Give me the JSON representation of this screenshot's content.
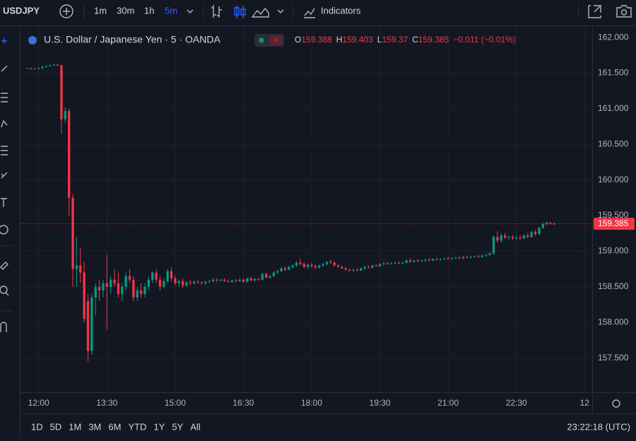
{
  "toolbar": {
    "symbol": "USDJPY",
    "intervals": [
      "1m",
      "30m",
      "1h",
      "5m"
    ],
    "indicators": "Indicators"
  },
  "header": {
    "title": "U.S. Dollar / Japanese Yen · 5 · OANDA",
    "ohlc_labels": [
      "O",
      "H",
      "L",
      "C"
    ],
    "change": "−0.011 (−0.01%)"
  },
  "footer": {
    "ranges": [
      "1D",
      "5D",
      "1M",
      "3M",
      "6M",
      "YTD",
      "1Y",
      "5Y",
      "All"
    ],
    "clock": "23:22:18 (UTC)"
  },
  "chart_data": {
    "type": "candlestick",
    "up_color": "#089981",
    "down_color": "#f23645",
    "ylim": [
      157.02,
      162.16
    ],
    "yticks": [
      {
        "value": 157.5,
        "label": "157.500"
      },
      {
        "value": 158,
        "label": "158.000"
      },
      {
        "value": 158.5,
        "label": "158.500"
      },
      {
        "value": 159,
        "label": "159.000"
      },
      {
        "value": 159.5,
        "label": "159.500"
      },
      {
        "value": 160,
        "label": "160.000"
      },
      {
        "value": 160.5,
        "label": "160.500"
      },
      {
        "value": 161,
        "label": "161.000"
      },
      {
        "value": 161.5,
        "label": "161.500"
      },
      {
        "value": 162,
        "label": "162.000"
      }
    ],
    "xlim": [
      "11:36",
      "00:10"
    ],
    "xticks": [
      "12:00",
      "13:30",
      "15:00",
      "16:30",
      "18:00",
      "19:30",
      "21:00",
      "22:30",
      {
        "value": "00:00",
        "label": "12"
      }
    ],
    "grid": true,
    "x": [
      "11:45",
      "11:50",
      "11:55",
      "12:00",
      "12:05",
      "12:10",
      "12:15",
      "12:20",
      "12:25",
      "12:30",
      "12:35",
      "12:40",
      "12:45",
      "12:50",
      "12:55",
      "13:00",
      "13:05",
      "13:10",
      "13:15",
      "13:20",
      "13:25",
      "13:30",
      "13:35",
      "13:40",
      "13:45",
      "13:50",
      "13:55",
      "14:00",
      "14:05",
      "14:10",
      "14:15",
      "14:20",
      "14:25",
      "14:30",
      "14:35",
      "14:40",
      "14:45",
      "14:50",
      "14:55",
      "15:00",
      "15:05",
      "15:10",
      "15:15",
      "15:20",
      "15:25",
      "15:30",
      "15:35",
      "15:40",
      "15:45",
      "15:50",
      "15:55",
      "16:00",
      "16:05",
      "16:10",
      "16:15",
      "16:20",
      "16:25",
      "16:30",
      "16:35",
      "16:40",
      "16:45",
      "16:50",
      "16:55",
      "17:00",
      "17:05",
      "17:10",
      "17:15",
      "17:20",
      "17:25",
      "17:30",
      "17:35",
      "17:40",
      "17:45",
      "17:50",
      "17:55",
      "18:00",
      "18:05",
      "18:10",
      "18:15",
      "18:20",
      "18:25",
      "18:30",
      "18:35",
      "18:40",
      "18:45",
      "18:50",
      "18:55",
      "19:00",
      "19:05",
      "19:10",
      "19:15",
      "19:20",
      "19:25",
      "19:30",
      "19:35",
      "19:40",
      "19:45",
      "19:50",
      "19:55",
      "20:00",
      "20:05",
      "20:10",
      "20:15",
      "20:20",
      "20:25",
      "20:30",
      "20:35",
      "20:40",
      "20:45",
      "20:50",
      "20:55",
      "21:00",
      "21:05",
      "21:10",
      "21:15",
      "21:20",
      "21:25",
      "21:30",
      "21:35",
      "21:40",
      "21:45",
      "21:50",
      "21:55",
      "22:00",
      "22:05",
      "22:10",
      "22:15",
      "22:20",
      "22:25",
      "22:30",
      "22:35",
      "22:40",
      "22:45",
      "22:50",
      "22:55",
      "23:00",
      "23:05",
      "23:10",
      "23:15",
      "23:20"
    ],
    "candles": [
      [
        161.57,
        161.58,
        161.56,
        161.57
      ],
      [
        161.57,
        161.58,
        161.55,
        161.56
      ],
      [
        161.56,
        161.57,
        161.55,
        161.56
      ],
      [
        161.56,
        161.58,
        161.55,
        161.57
      ],
      [
        161.57,
        161.6,
        161.56,
        161.59
      ],
      [
        161.59,
        161.61,
        161.58,
        161.6
      ],
      [
        161.6,
        161.62,
        161.59,
        161.61
      ],
      [
        161.61,
        161.63,
        161.6,
        161.62
      ],
      [
        161.62,
        161.63,
        161.6,
        161.61
      ],
      [
        161.61,
        161.62,
        160.65,
        160.85
      ],
      [
        160.85,
        161.02,
        160.8,
        160.97
      ],
      [
        160.97,
        161.0,
        159.5,
        159.75
      ],
      [
        159.75,
        159.8,
        158.5,
        158.75
      ],
      [
        158.75,
        159.2,
        158.5,
        158.8
      ],
      [
        158.8,
        159.05,
        158.55,
        158.7
      ],
      [
        158.7,
        158.85,
        158.0,
        158.05
      ],
      [
        158.3,
        158.4,
        157.45,
        157.6
      ],
      [
        157.6,
        158.4,
        157.55,
        158.35
      ],
      [
        158.35,
        158.55,
        158.1,
        158.5
      ],
      [
        158.5,
        158.6,
        158.3,
        158.45
      ],
      [
        158.45,
        158.6,
        158.35,
        158.55
      ],
      [
        158.55,
        158.95,
        157.9,
        158.5
      ],
      [
        158.5,
        158.65,
        158.4,
        158.6
      ],
      [
        158.6,
        158.75,
        158.5,
        158.55
      ],
      [
        158.55,
        158.7,
        158.35,
        158.4
      ],
      [
        158.4,
        158.55,
        158.3,
        158.5
      ],
      [
        158.5,
        158.7,
        158.45,
        158.65
      ],
      [
        158.65,
        158.75,
        158.55,
        158.6
      ],
      [
        158.6,
        158.65,
        158.3,
        158.35
      ],
      [
        158.35,
        158.5,
        158.3,
        158.45
      ],
      [
        158.45,
        158.55,
        158.35,
        158.4
      ],
      [
        158.4,
        158.55,
        158.35,
        158.5
      ],
      [
        158.5,
        158.65,
        158.45,
        158.6
      ],
      [
        158.6,
        158.72,
        158.55,
        158.7
      ],
      [
        158.7,
        158.75,
        158.55,
        158.6
      ],
      [
        158.6,
        158.65,
        158.45,
        158.5
      ],
      [
        158.5,
        158.62,
        158.48,
        158.58
      ],
      [
        158.58,
        158.75,
        158.55,
        158.72
      ],
      [
        158.72,
        158.78,
        158.58,
        158.62
      ],
      [
        158.62,
        158.66,
        158.52,
        158.55
      ],
      [
        158.55,
        158.6,
        158.5,
        158.58
      ],
      [
        158.58,
        158.62,
        158.48,
        158.52
      ],
      [
        158.52,
        158.58,
        158.5,
        158.56
      ],
      [
        158.56,
        158.6,
        158.52,
        158.55
      ],
      [
        158.55,
        158.59,
        158.53,
        158.57
      ],
      [
        158.57,
        158.6,
        158.54,
        158.56
      ],
      [
        158.56,
        158.58,
        158.53,
        158.55
      ],
      [
        158.55,
        158.59,
        158.52,
        158.57
      ],
      [
        158.57,
        158.6,
        158.55,
        158.58
      ],
      [
        158.58,
        158.62,
        158.56,
        158.6
      ],
      [
        158.6,
        158.62,
        158.57,
        158.59
      ],
      [
        158.59,
        158.61,
        158.57,
        158.6
      ],
      [
        158.6,
        158.62,
        158.57,
        158.58
      ],
      [
        158.58,
        158.6,
        158.56,
        158.57
      ],
      [
        158.57,
        158.6,
        158.55,
        158.59
      ],
      [
        158.59,
        158.61,
        158.56,
        158.58
      ],
      [
        158.58,
        158.62,
        158.57,
        158.6
      ],
      [
        158.6,
        158.62,
        158.56,
        158.57
      ],
      [
        158.57,
        158.63,
        158.56,
        158.62
      ],
      [
        158.62,
        158.64,
        158.58,
        158.59
      ],
      [
        158.59,
        158.62,
        158.57,
        158.61
      ],
      [
        158.61,
        158.63,
        158.58,
        158.6
      ],
      [
        158.6,
        158.7,
        158.59,
        158.68
      ],
      [
        158.68,
        158.7,
        158.62,
        158.63
      ],
      [
        158.63,
        158.67,
        158.61,
        158.65
      ],
      [
        158.65,
        158.72,
        158.64,
        158.7
      ],
      [
        158.7,
        158.74,
        158.68,
        158.72
      ],
      [
        158.72,
        158.78,
        158.7,
        158.76
      ],
      [
        158.76,
        158.79,
        158.72,
        158.74
      ],
      [
        158.74,
        158.8,
        158.73,
        158.78
      ],
      [
        158.78,
        158.82,
        158.75,
        158.8
      ],
      [
        158.8,
        158.86,
        158.78,
        158.84
      ],
      [
        158.84,
        158.9,
        158.8,
        158.82
      ],
      [
        158.82,
        158.85,
        158.76,
        158.78
      ],
      [
        158.78,
        158.83,
        158.76,
        158.81
      ],
      [
        158.81,
        158.84,
        158.77,
        158.79
      ],
      [
        158.79,
        158.82,
        158.75,
        158.77
      ],
      [
        158.77,
        158.81,
        158.75,
        158.8
      ],
      [
        158.8,
        158.84,
        158.78,
        158.82
      ],
      [
        158.82,
        158.86,
        158.8,
        158.85
      ],
      [
        158.85,
        158.88,
        158.82,
        158.84
      ],
      [
        158.84,
        158.86,
        158.79,
        158.8
      ],
      [
        158.8,
        158.82,
        158.77,
        158.78
      ],
      [
        158.78,
        158.8,
        158.75,
        158.76
      ],
      [
        158.76,
        158.78,
        158.73,
        158.74
      ],
      [
        158.74,
        158.76,
        158.71,
        158.73
      ],
      [
        158.73,
        158.75,
        158.71,
        158.74
      ],
      [
        158.74,
        158.76,
        158.72,
        158.73
      ],
      [
        158.73,
        158.77,
        158.72,
        158.76
      ],
      [
        158.76,
        158.79,
        158.74,
        158.78
      ],
      [
        158.78,
        158.8,
        158.76,
        158.77
      ],
      [
        158.77,
        158.81,
        158.76,
        158.8
      ],
      [
        158.8,
        158.82,
        158.78,
        158.79
      ],
      [
        158.79,
        158.83,
        158.78,
        158.82
      ],
      [
        158.82,
        158.85,
        158.8,
        158.83
      ],
      [
        158.83,
        158.85,
        158.81,
        158.82
      ],
      [
        158.82,
        158.84,
        158.81,
        158.83
      ],
      [
        158.83,
        158.85,
        158.82,
        158.84
      ],
      [
        158.84,
        158.86,
        158.82,
        158.83
      ],
      [
        158.83,
        158.85,
        158.82,
        158.84
      ],
      [
        158.84,
        158.88,
        158.83,
        158.87
      ],
      [
        158.87,
        158.9,
        158.84,
        158.85
      ],
      [
        158.85,
        158.88,
        158.84,
        158.87
      ],
      [
        158.87,
        158.89,
        158.85,
        158.86
      ],
      [
        158.86,
        158.88,
        158.85,
        158.87
      ],
      [
        158.87,
        158.89,
        158.85,
        158.88
      ],
      [
        158.88,
        158.9,
        158.86,
        158.87
      ],
      [
        158.87,
        158.9,
        158.86,
        158.89
      ],
      [
        158.89,
        158.91,
        158.87,
        158.88
      ],
      [
        158.88,
        158.9,
        158.87,
        158.89
      ],
      [
        158.89,
        158.91,
        158.88,
        158.9
      ],
      [
        158.9,
        158.92,
        158.88,
        158.89
      ],
      [
        158.89,
        158.91,
        158.88,
        158.9
      ],
      [
        158.9,
        158.92,
        158.89,
        158.91
      ],
      [
        158.91,
        158.93,
        158.89,
        158.9
      ],
      [
        158.9,
        158.93,
        158.89,
        158.92
      ],
      [
        158.92,
        158.94,
        158.9,
        158.91
      ],
      [
        158.91,
        158.93,
        158.9,
        158.92
      ],
      [
        158.92,
        158.94,
        158.91,
        158.93
      ],
      [
        158.93,
        158.95,
        158.91,
        158.92
      ],
      [
        158.92,
        158.95,
        158.91,
        158.94
      ],
      [
        158.94,
        158.96,
        158.92,
        158.95
      ],
      [
        158.95,
        158.98,
        158.93,
        158.97
      ],
      [
        158.97,
        159.22,
        158.95,
        159.2
      ],
      [
        159.2,
        159.28,
        159.12,
        159.15
      ],
      [
        159.15,
        159.25,
        159.12,
        159.22
      ],
      [
        159.22,
        159.26,
        159.17,
        159.19
      ],
      [
        159.19,
        159.22,
        159.15,
        159.2
      ],
      [
        159.2,
        159.23,
        159.16,
        159.18
      ],
      [
        159.18,
        159.22,
        159.15,
        159.19
      ],
      [
        159.19,
        159.22,
        159.16,
        159.18
      ],
      [
        159.18,
        159.24,
        159.17,
        159.22
      ],
      [
        159.22,
        159.26,
        159.18,
        159.2
      ],
      [
        159.2,
        159.28,
        159.19,
        159.27
      ],
      [
        159.27,
        159.3,
        159.22,
        159.24
      ],
      [
        159.24,
        159.34,
        159.23,
        159.33
      ],
      [
        159.33,
        159.4,
        159.31,
        159.38
      ],
      [
        159.38,
        159.42,
        159.36,
        159.4
      ],
      [
        159.4,
        159.41,
        159.37,
        159.388
      ],
      [
        159.388,
        159.403,
        159.37,
        159.385
      ]
    ]
  }
}
